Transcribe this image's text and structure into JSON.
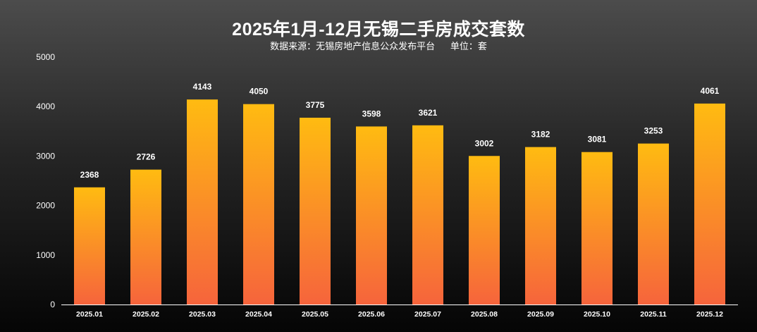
{
  "chart_data": {
    "type": "bar",
    "title": "2025年1月-12月无锡二手房成交套数",
    "source_label": "数据来源：无锡房地产信息公众发布平台",
    "unit_label": "单位：套",
    "categories": [
      "2025.01",
      "2025.02",
      "2025.03",
      "2025.04",
      "2025.05",
      "2025.06",
      "2025.07",
      "2025.08",
      "2025.09",
      "2025.10",
      "2025.11",
      "2025.12"
    ],
    "values": [
      2368,
      2726,
      4143,
      4050,
      3775,
      3598,
      3621,
      3002,
      3182,
      3081,
      3253,
      4061
    ],
    "ylim": [
      0,
      5000
    ],
    "yticks": [
      0,
      1000,
      2000,
      3000,
      4000,
      5000
    ],
    "xlabel": "",
    "ylabel": "",
    "grid": false,
    "legend": "none",
    "colors": {
      "bar_top": "#ffbb11",
      "bar_bottom": "#f6643c",
      "axis": "#ffffff",
      "text": "#ffffff"
    }
  }
}
